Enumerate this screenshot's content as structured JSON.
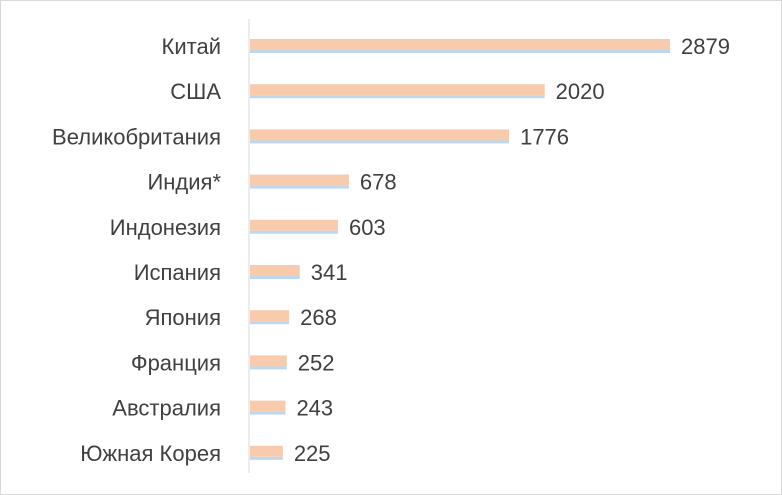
{
  "chart_data": {
    "type": "bar",
    "orientation": "horizontal",
    "categories": [
      "Китай",
      "США",
      "Великобритания",
      "Индия*",
      "Индонезия",
      "Испания",
      "Япония",
      "Франция",
      "Австралия",
      "Южная Корея"
    ],
    "series": [
      {
        "values": [
          2879,
          2020,
          1776,
          678,
          603,
          341,
          268,
          252,
          243,
          225
        ]
      }
    ],
    "xlim": [
      0,
      2879
    ],
    "grid": false,
    "legend": "none",
    "colors": {
      "bar": "#f8cbad",
      "bar_underline": "#bdd7ee",
      "axis": "#d9d9d9",
      "text": "#404040"
    }
  }
}
